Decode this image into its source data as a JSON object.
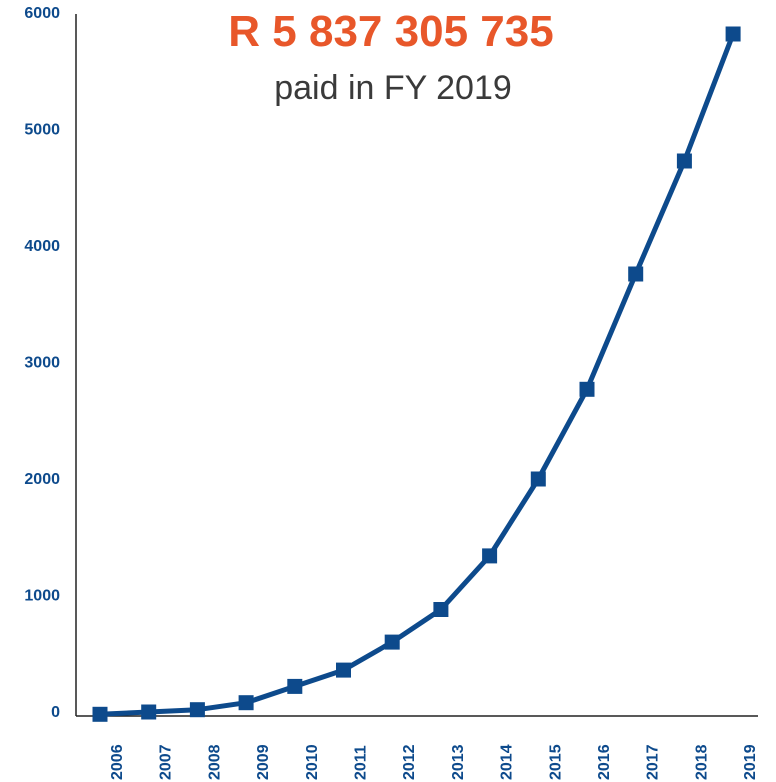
{
  "headline": {
    "amount": "R 5 837 305 735",
    "caption": "paid in FY 2019"
  },
  "colors": {
    "headline": "#e8572a",
    "series": "#0d4a8c",
    "axis": "#222222",
    "tick_text": "#0d4a8c"
  },
  "chart_data": {
    "type": "line",
    "title": "R 5 837 305 735",
    "subtitle": "paid in FY 2019",
    "xlabel": "",
    "ylabel": "",
    "x_tick_labels": [
      "2006",
      "2007",
      "2008",
      "2009",
      "2010",
      "2011",
      "2012",
      "2013",
      "2014",
      "2015",
      "2016",
      "2017",
      "2018",
      "2019"
    ],
    "y_tick_labels": [
      "0",
      "1000",
      "2000",
      "3000",
      "4000",
      "5000",
      "6000"
    ],
    "ylim": [
      0,
      6000
    ],
    "grid": false,
    "legend": "none",
    "series": [
      {
        "marker": "square",
        "values": [
          -20,
          0,
          20,
          80,
          220,
          360,
          600,
          880,
          1340,
          2000,
          2770,
          3760,
          4730,
          5820
        ]
      }
    ]
  }
}
